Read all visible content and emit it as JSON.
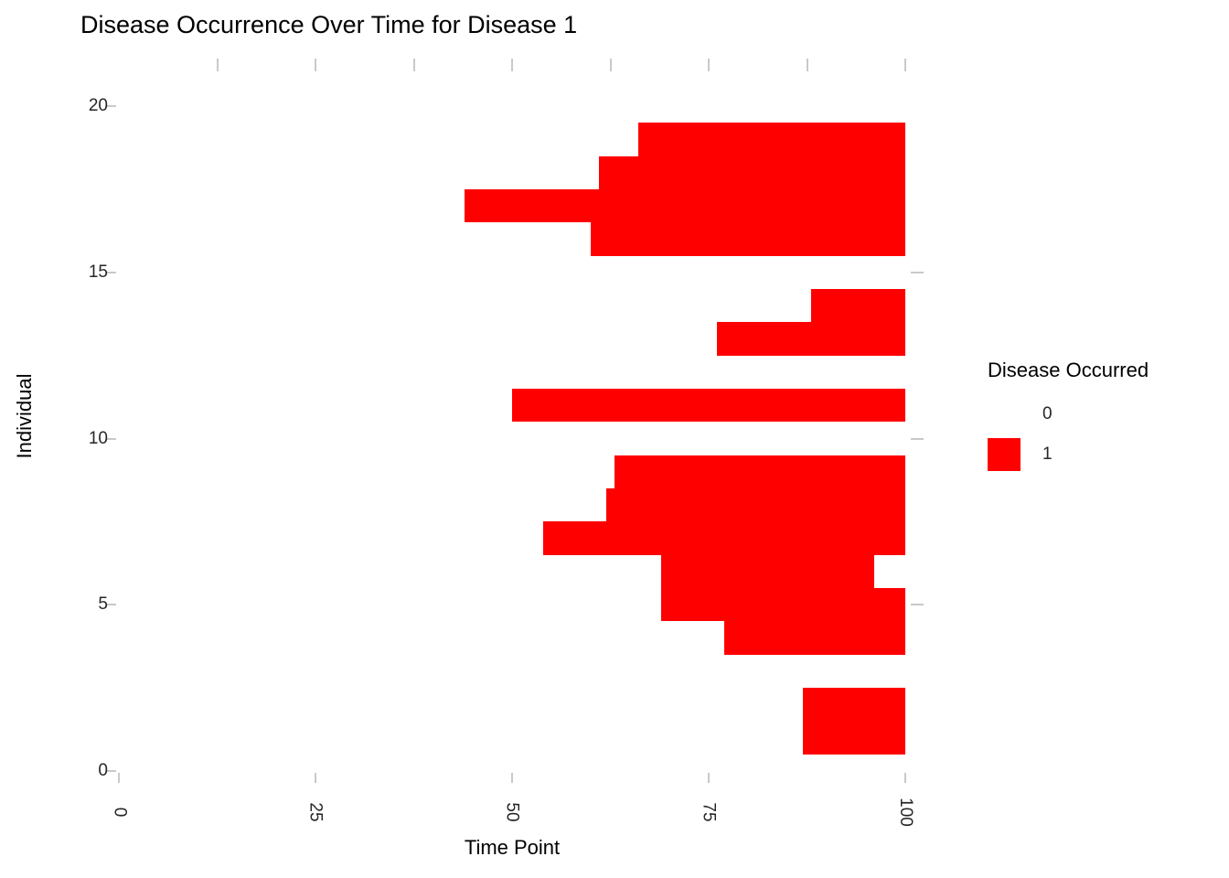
{
  "title": "Disease Occurrence Over Time for Disease 1",
  "x_axis": {
    "label": "Time Point",
    "ticks": [
      {
        "label": "0",
        "value": 0
      },
      {
        "label": "25",
        "value": 25
      },
      {
        "label": "50",
        "value": 50
      },
      {
        "label": "75",
        "value": 75
      },
      {
        "label": "100",
        "value": 100
      }
    ],
    "minor_ticks": [
      12.5,
      37.5,
      62.5,
      87.5
    ],
    "range": [
      0,
      100
    ]
  },
  "y_axis": {
    "label": "Individual",
    "ticks": [
      {
        "label": "0",
        "value": 0
      },
      {
        "label": "5",
        "value": 5
      },
      {
        "label": "10",
        "value": 10
      },
      {
        "label": "15",
        "value": 15
      },
      {
        "label": "20",
        "value": 20
      }
    ],
    "range": [
      0,
      20
    ]
  },
  "legend": {
    "title": "Disease Occurred",
    "items": [
      {
        "label": "0",
        "color": "#FFFFFF"
      },
      {
        "label": "1",
        "color": "#FF0000"
      }
    ]
  },
  "colors": {
    "bar": "#FF0000",
    "tick_mark": "#C9C9C9",
    "text": "#000000",
    "background": "#FFFFFF"
  },
  "chart_data": {
    "type": "bar",
    "subtype": "horizontal-occurrence-strips",
    "title": "Disease Occurrence Over Time for Disease 1",
    "xlabel": "Time Point",
    "ylabel": "Individual",
    "xlim": [
      0,
      100
    ],
    "ylim": [
      0,
      20
    ],
    "grid": "off",
    "legend_position": "right",
    "legend_title": "Disease Occurred",
    "legend_levels": [
      "0",
      "1"
    ],
    "series_name": "Disease Occurred = 1",
    "bars": [
      {
        "individual": 19,
        "start": 66,
        "end": 100
      },
      {
        "individual": 18,
        "start": 61,
        "end": 100
      },
      {
        "individual": 17,
        "start": 44,
        "end": 100
      },
      {
        "individual": 16,
        "start": 60,
        "end": 100
      },
      {
        "individual": 14,
        "start": 88,
        "end": 100
      },
      {
        "individual": 13,
        "start": 76,
        "end": 100
      },
      {
        "individual": 11,
        "start": 50,
        "end": 100
      },
      {
        "individual": 9,
        "start": 63,
        "end": 100
      },
      {
        "individual": 8,
        "start": 62,
        "end": 100
      },
      {
        "individual": 7,
        "start": 54,
        "end": 100
      },
      {
        "individual": 6,
        "start": 69,
        "end": 96
      },
      {
        "individual": 5,
        "start": 69,
        "end": 100
      },
      {
        "individual": 4,
        "start": 77,
        "end": 100
      },
      {
        "individual": 2,
        "start": 87,
        "end": 100
      },
      {
        "individual": 1,
        "start": 87,
        "end": 100
      }
    ]
  }
}
